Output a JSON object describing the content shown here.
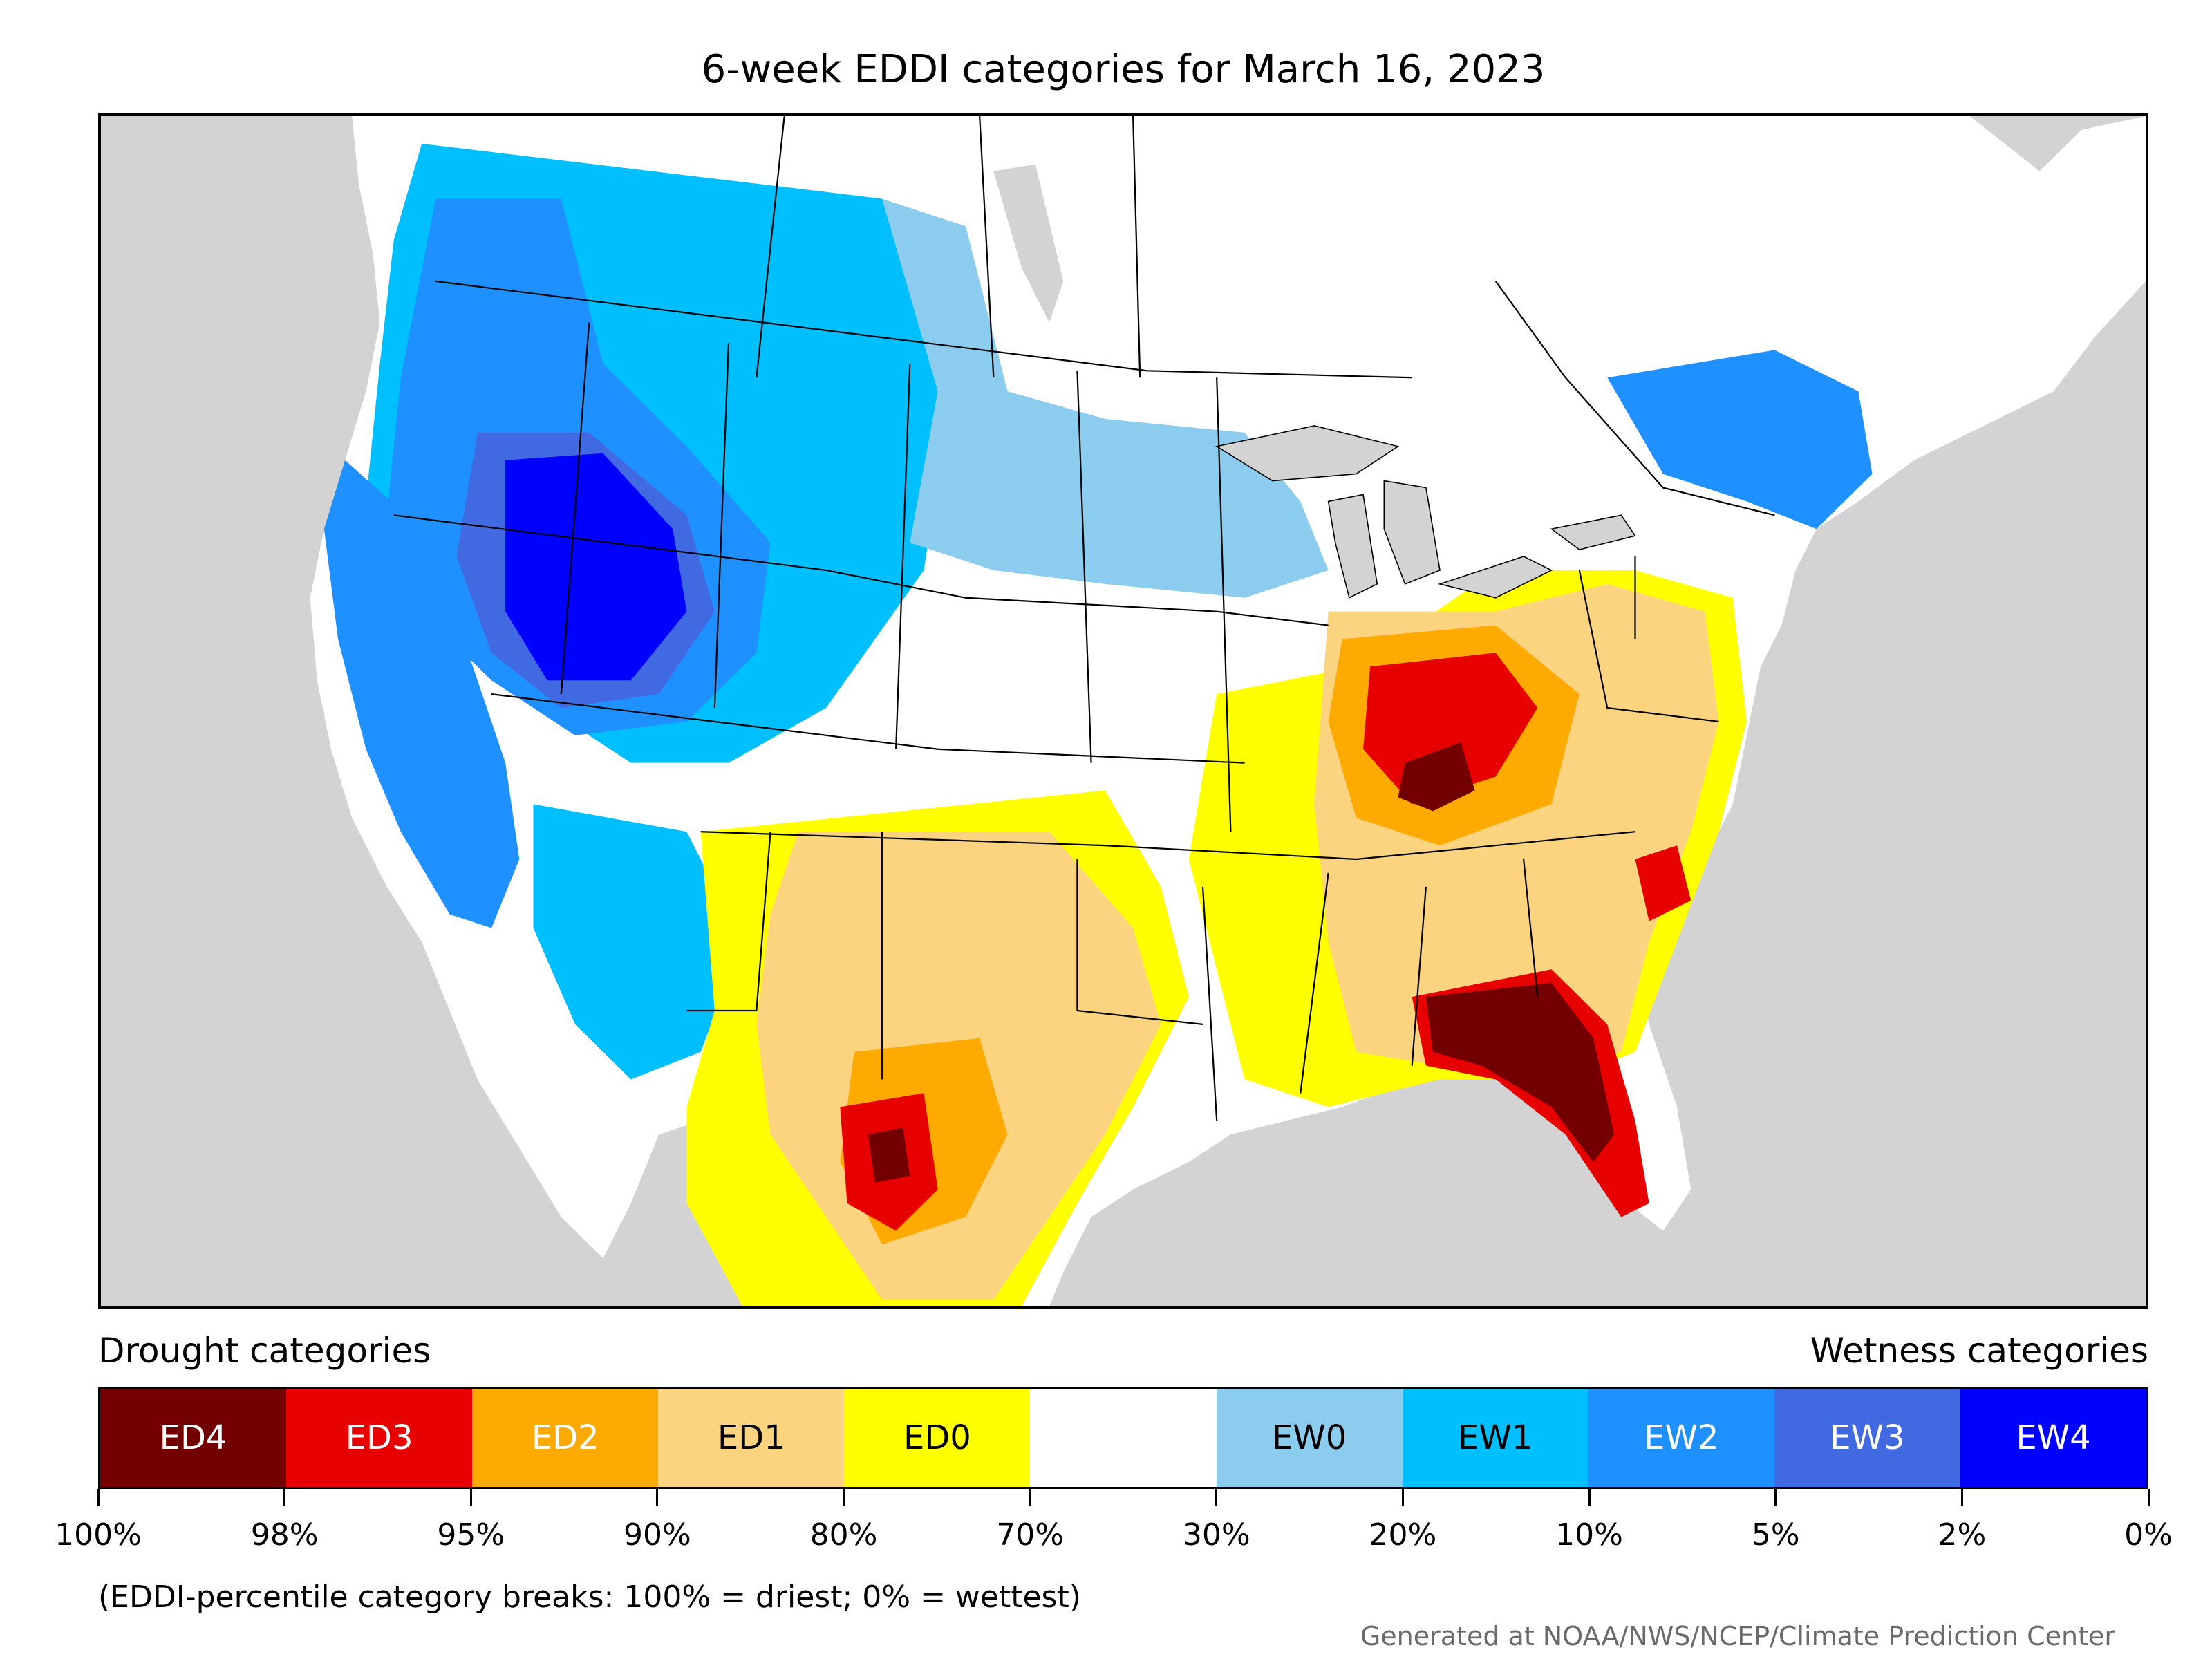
{
  "title": "6-week EDDI categories for March 16, 2023",
  "legend": {
    "drought_heading": "Drought categories",
    "wetness_heading": "Wetness categories",
    "categories": [
      {
        "label": "ED4",
        "color": "#730000",
        "text_color": "#ffffff"
      },
      {
        "label": "ED3",
        "color": "#e60000",
        "text_color": "#ffffff"
      },
      {
        "label": "ED2",
        "color": "#ffaa00",
        "text_color": "#ffffff"
      },
      {
        "label": "ED1",
        "color": "#fcd37f",
        "text_color": "#000000"
      },
      {
        "label": "ED0",
        "color": "#ffff00",
        "text_color": "#000000"
      },
      {
        "label": "",
        "color": "#ffffff",
        "text_color": "#000000"
      },
      {
        "label": "EW0",
        "color": "#8ccdef",
        "text_color": "#000000"
      },
      {
        "label": "EW1",
        "color": "#00bfff",
        "text_color": "#000000"
      },
      {
        "label": "EW2",
        "color": "#1e90ff",
        "text_color": "#ffffff"
      },
      {
        "label": "EW3",
        "color": "#4169e1",
        "text_color": "#ffffff"
      },
      {
        "label": "EW4",
        "color": "#0000ff",
        "text_color": "#ffffff"
      }
    ],
    "breaks": [
      "100%",
      "98%",
      "95%",
      "90%",
      "80%",
      "70%",
      "30%",
      "20%",
      "10%",
      "5%",
      "2%",
      "0%"
    ]
  },
  "note": "(EDDI-percentile category breaks: 100% = driest; 0% = wettest)",
  "credit": "Generated at NOAA/NWS/NCEP/Climate Prediction Center",
  "colors": {
    "ocean": "#d3d3d3",
    "land_none": "#ffffff",
    "borders": "#000000"
  }
}
